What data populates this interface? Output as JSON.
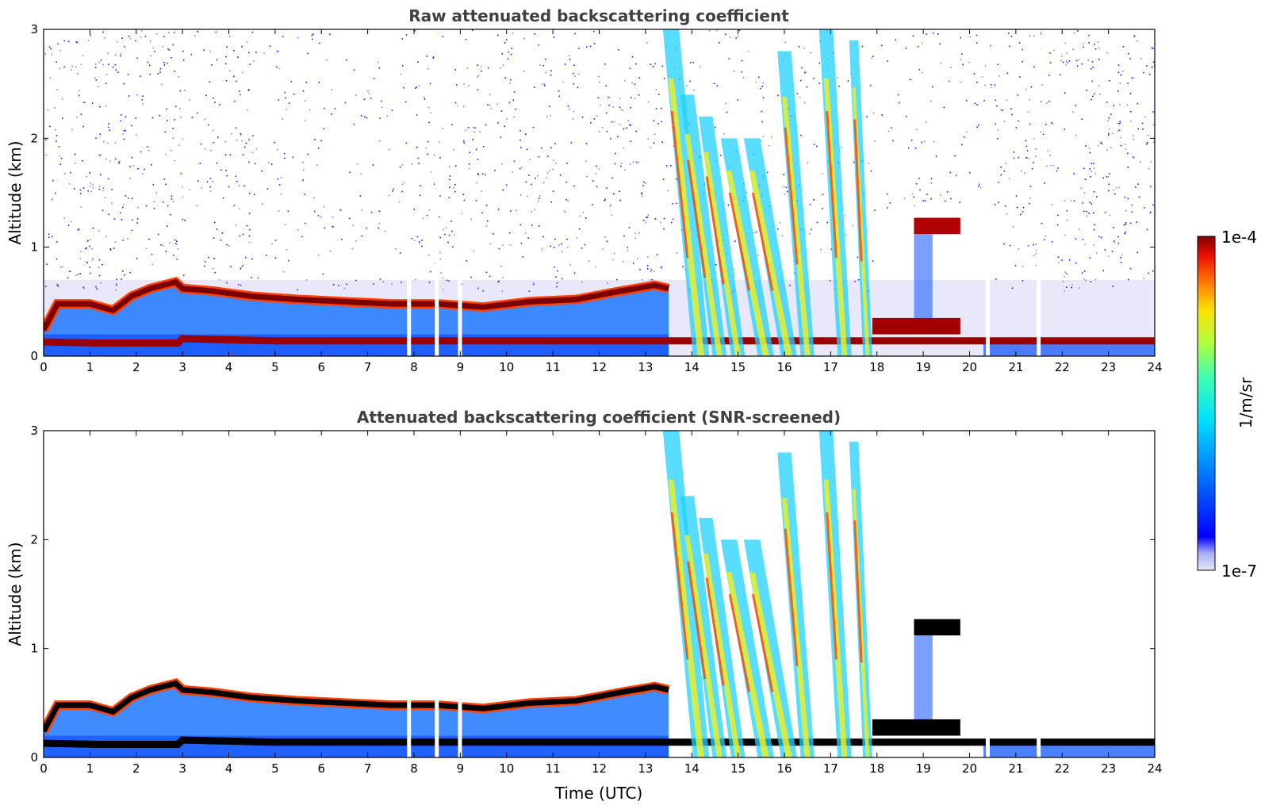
{
  "chart_data": [
    {
      "type": "heatmap",
      "title": "Raw attenuated backscattering coefficient",
      "xlabel": "",
      "ylabel": "Altitude (km)",
      "xlim": [
        0,
        24
      ],
      "ylim": [
        0,
        3
      ],
      "xticks": [
        "0",
        "1",
        "2",
        "3",
        "4",
        "5",
        "6",
        "7",
        "8",
        "9",
        "10",
        "11",
        "12",
        "13",
        "14",
        "15",
        "16",
        "17",
        "18",
        "19",
        "20",
        "21",
        "22",
        "23",
        "24"
      ],
      "yticks": [
        "0",
        "1",
        "2",
        "3"
      ],
      "screened": false
    },
    {
      "type": "heatmap",
      "title": "Attenuated backscattering coefficient (SNR-screened)",
      "xlabel": "Time (UTC)",
      "ylabel": "Altitude (km)",
      "xlim": [
        0,
        24
      ],
      "ylim": [
        0,
        3
      ],
      "xticks": [
        "0",
        "1",
        "2",
        "3",
        "4",
        "5",
        "6",
        "7",
        "8",
        "9",
        "10",
        "11",
        "12",
        "13",
        "14",
        "15",
        "16",
        "17",
        "18",
        "19",
        "20",
        "21",
        "22",
        "23",
        "24"
      ],
      "yticks": [
        "0",
        "1",
        "2",
        "3"
      ],
      "screened": true
    }
  ],
  "colorbar": {
    "label": "1/m/sr",
    "min_label": "1e-7",
    "max_label": "1e-4",
    "colormap": "jet",
    "scale": "log"
  },
  "features": {
    "boundary_layer_top": [
      [
        0.0,
        0.24
      ],
      [
        0.3,
        0.48
      ],
      [
        1.0,
        0.48
      ],
      [
        1.5,
        0.42
      ],
      [
        1.9,
        0.55
      ],
      [
        2.3,
        0.62
      ],
      [
        2.85,
        0.68
      ],
      [
        3.0,
        0.62
      ],
      [
        3.6,
        0.6
      ],
      [
        4.5,
        0.55
      ],
      [
        5.5,
        0.52
      ],
      [
        6.5,
        0.5
      ],
      [
        7.5,
        0.48
      ],
      [
        8.5,
        0.48
      ],
      [
        9.5,
        0.45
      ],
      [
        10.5,
        0.5
      ],
      [
        11.5,
        0.52
      ],
      [
        12.5,
        0.6
      ],
      [
        13.2,
        0.65
      ],
      [
        13.5,
        0.62
      ]
    ],
    "surface_layer_top": [
      [
        0.0,
        0.13
      ],
      [
        1.2,
        0.12
      ],
      [
        2.9,
        0.12
      ],
      [
        3.0,
        0.16
      ],
      [
        5.0,
        0.14
      ],
      [
        6.1,
        0.14
      ],
      [
        20.3,
        0.14
      ],
      [
        24.0,
        0.14
      ]
    ],
    "precip_streaks": [
      {
        "top": [
          13.55,
          3.0
        ],
        "bottom": [
          14.2,
          0.0
        ],
        "w": 0.35
      },
      {
        "top": [
          13.9,
          2.4
        ],
        "bottom": [
          14.6,
          0.0
        ],
        "w": 0.3
      },
      {
        "top": [
          14.3,
          2.2
        ],
        "bottom": [
          15.0,
          0.0
        ],
        "w": 0.3
      },
      {
        "top": [
          14.8,
          2.0
        ],
        "bottom": [
          15.6,
          0.0
        ],
        "w": 0.35
      },
      {
        "top": [
          15.3,
          2.0
        ],
        "bottom": [
          16.1,
          0.0
        ],
        "w": 0.35
      },
      {
        "top": [
          16.0,
          2.8
        ],
        "bottom": [
          16.5,
          0.0
        ],
        "w": 0.3
      },
      {
        "top": [
          16.9,
          3.0
        ],
        "bottom": [
          17.3,
          0.0
        ],
        "w": 0.3
      },
      {
        "top": [
          17.5,
          2.9
        ],
        "bottom": [
          17.8,
          0.0
        ],
        "w": 0.2
      }
    ],
    "elevated_layer": {
      "x0": 18.8,
      "x1": 19.8,
      "y0": 1.12,
      "y1": 1.27
    },
    "gaps": [
      7.85,
      8.45,
      8.95,
      20.35,
      21.45
    ]
  }
}
